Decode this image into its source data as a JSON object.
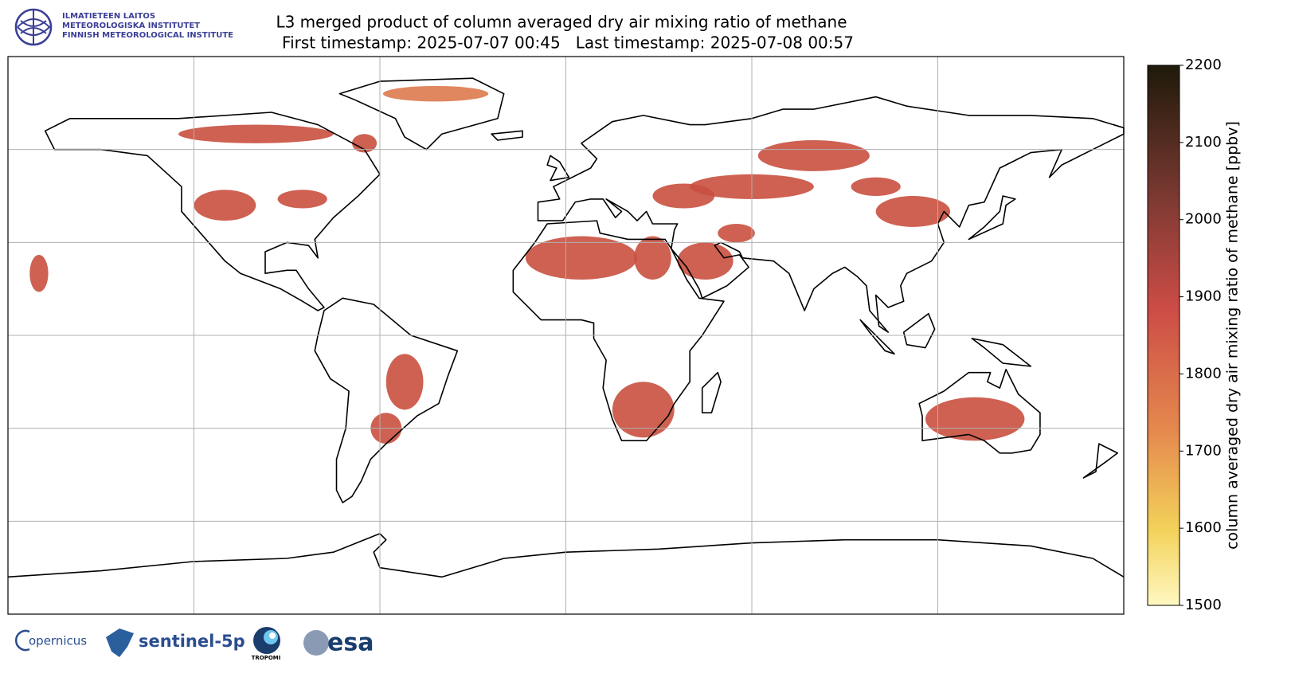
{
  "logo_lines": [
    "ILMATIETEEN LAITOS",
    "METEOROLOGISKA INSTITUTET",
    "FINNISH METEOROLOGICAL INSTITUTE"
  ],
  "title": "L3 merged product of column averaged dry air mixing ratio of methane",
  "subtitle": "First timestamp: 2025-07-07 00:45   Last timestamp: 2025-07-08 00:57",
  "colorbar": {
    "label": "column averaged dry air mixing ratio of methane [ppbv]",
    "lim": [
      1500,
      2200
    ],
    "ticks": [
      1500,
      1600,
      1700,
      1800,
      1900,
      2000,
      2100,
      2200
    ]
  },
  "footer_logos": [
    "opernicus",
    "sentinel-5p",
    "TROPOMI",
    "esa"
  ]
}
